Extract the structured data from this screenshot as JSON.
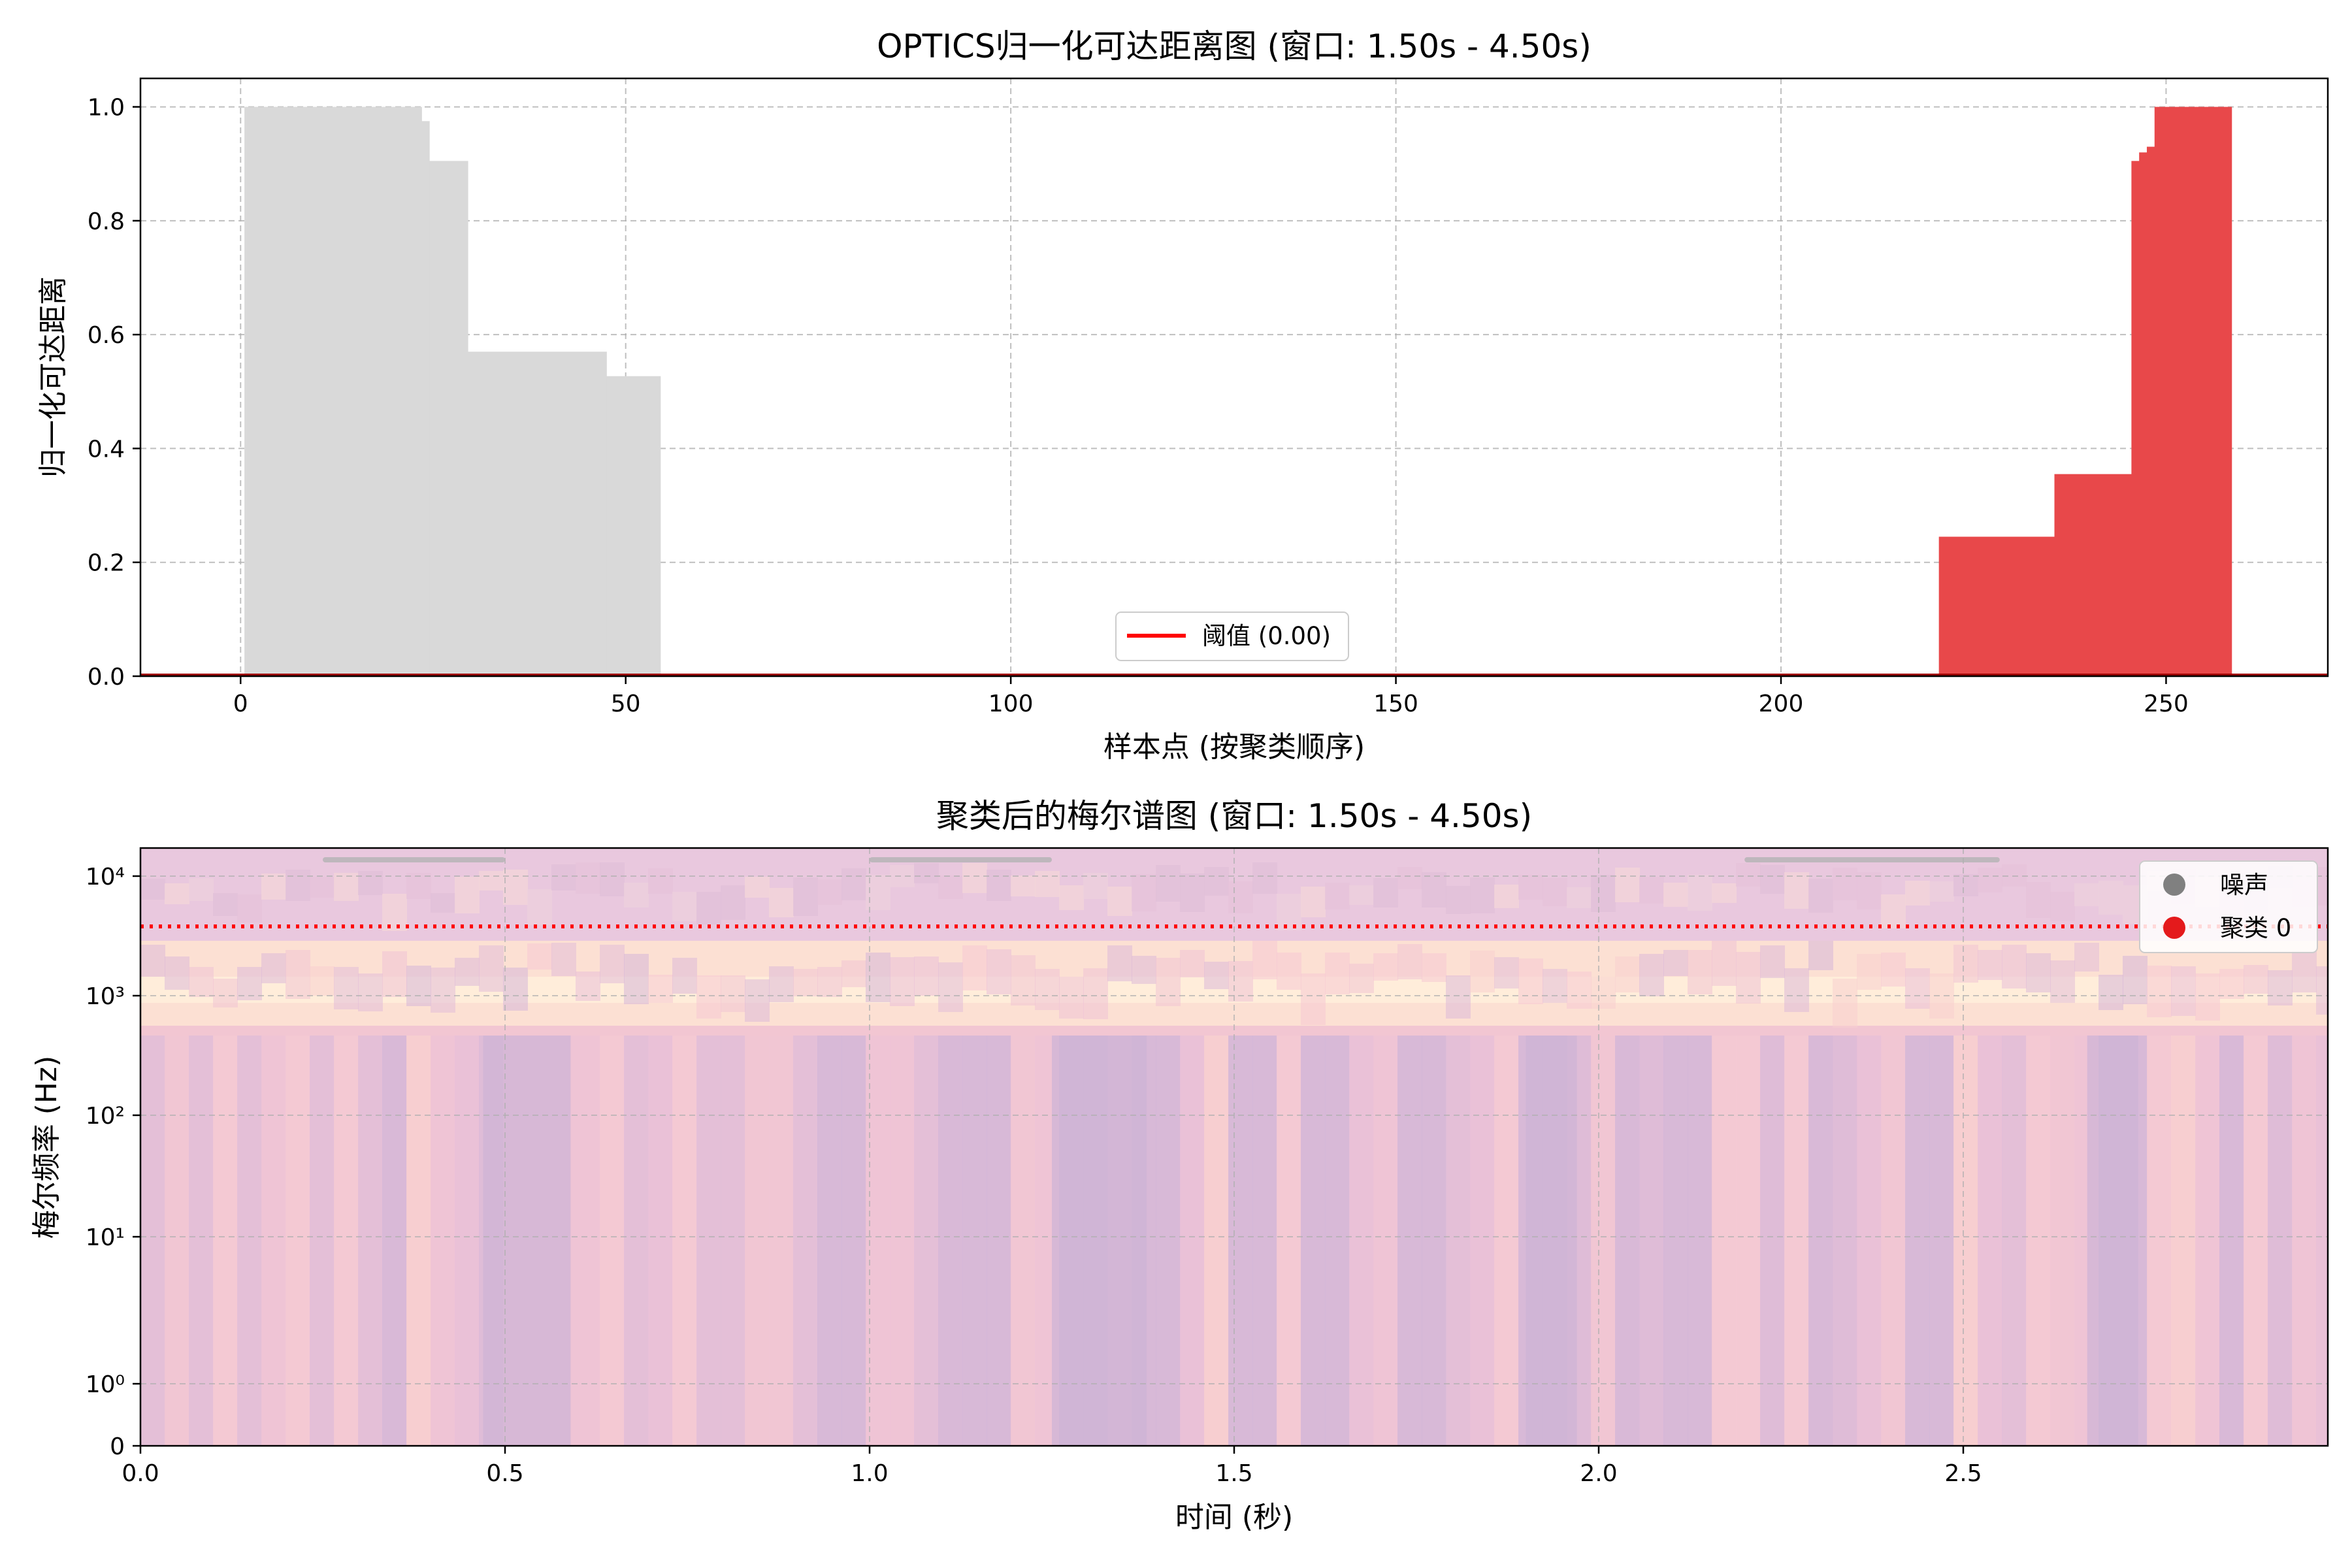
{
  "chart_data": [
    {
      "type": "bar",
      "title": "OPTICS归一化可达距离图 (窗口: 1.50s - 4.50s)",
      "xlabel": "样本点 (按聚类顺序)",
      "ylabel": "归一化可达距离",
      "xlim": [
        -13,
        271
      ],
      "ylim": [
        0,
        1.05
      ],
      "xticks": [
        0,
        50,
        100,
        150,
        200,
        250
      ],
      "xtick_labels": [
        "0",
        "50",
        "100",
        "150",
        "200",
        "250"
      ],
      "yticks": [
        0,
        0.2,
        0.4,
        0.6,
        0.8,
        1.0
      ],
      "ytick_labels": [
        "0.0",
        "0.2",
        "0.4",
        "0.6",
        "0.8",
        "1.0"
      ],
      "grid": true,
      "series": [
        {
          "name": "噪声",
          "color": "#d9d9d9",
          "bars": [
            {
              "x0": 0.5,
              "x1": 23.5,
              "y": 1.0
            },
            {
              "x0": 23.5,
              "x1": 24.5,
              "y": 0.975
            },
            {
              "x0": 24.5,
              "x1": 29.5,
              "y": 0.905
            },
            {
              "x0": 29.5,
              "x1": 47.5,
              "y": 0.57
            },
            {
              "x0": 47.5,
              "x1": 54.5,
              "y": 0.527
            }
          ]
        },
        {
          "name": "聚类 0",
          "color": "#e8484a",
          "bars": [
            {
              "x0": 220.5,
              "x1": 235.5,
              "y": 0.245
            },
            {
              "x0": 235.5,
              "x1": 245.5,
              "y": 0.355
            },
            {
              "x0": 245.5,
              "x1": 246.5,
              "y": 0.905
            },
            {
              "x0": 246.5,
              "x1": 247.5,
              "y": 0.92
            },
            {
              "x0": 247.5,
              "x1": 248.5,
              "y": 0.93
            },
            {
              "x0": 248.5,
              "x1": 258.5,
              "y": 1.0
            }
          ]
        }
      ],
      "threshold": {
        "label": "阈值 (0.00)",
        "value": 0.0,
        "color": "#ff0000"
      },
      "legend_position": "lower center"
    },
    {
      "type": "heatmap",
      "title": "聚类后的梅尔谱图 (窗口: 1.50s - 4.50s)",
      "xlabel": "时间 (秒)",
      "ylabel": "梅尔频率 (Hz)",
      "xlim": [
        0,
        3.0
      ],
      "xticks": [
        0.0,
        0.5,
        1.0,
        1.5,
        2.0,
        2.5
      ],
      "xtick_labels": [
        "0.0",
        "0.5",
        "1.0",
        "1.5",
        "2.0",
        "2.5"
      ],
      "yscale": "symlog",
      "ylim": [
        0,
        16000
      ],
      "yticks": [
        0,
        1,
        10,
        100,
        1000,
        10000
      ],
      "ytick_labels": [
        "0",
        "10⁰",
        "10¹",
        "10²",
        "10³",
        "10⁴"
      ],
      "grid": true,
      "threshold_line": {
        "value": 3500,
        "color": "#ff0000",
        "style": "dotted"
      },
      "legend": [
        {
          "label": "噪声",
          "color": "#808080"
        },
        {
          "label": "聚类 0",
          "color": "#e41a1c"
        }
      ],
      "legend_position": "upper right",
      "colormap": "magma (alpha overlay)"
    }
  ]
}
